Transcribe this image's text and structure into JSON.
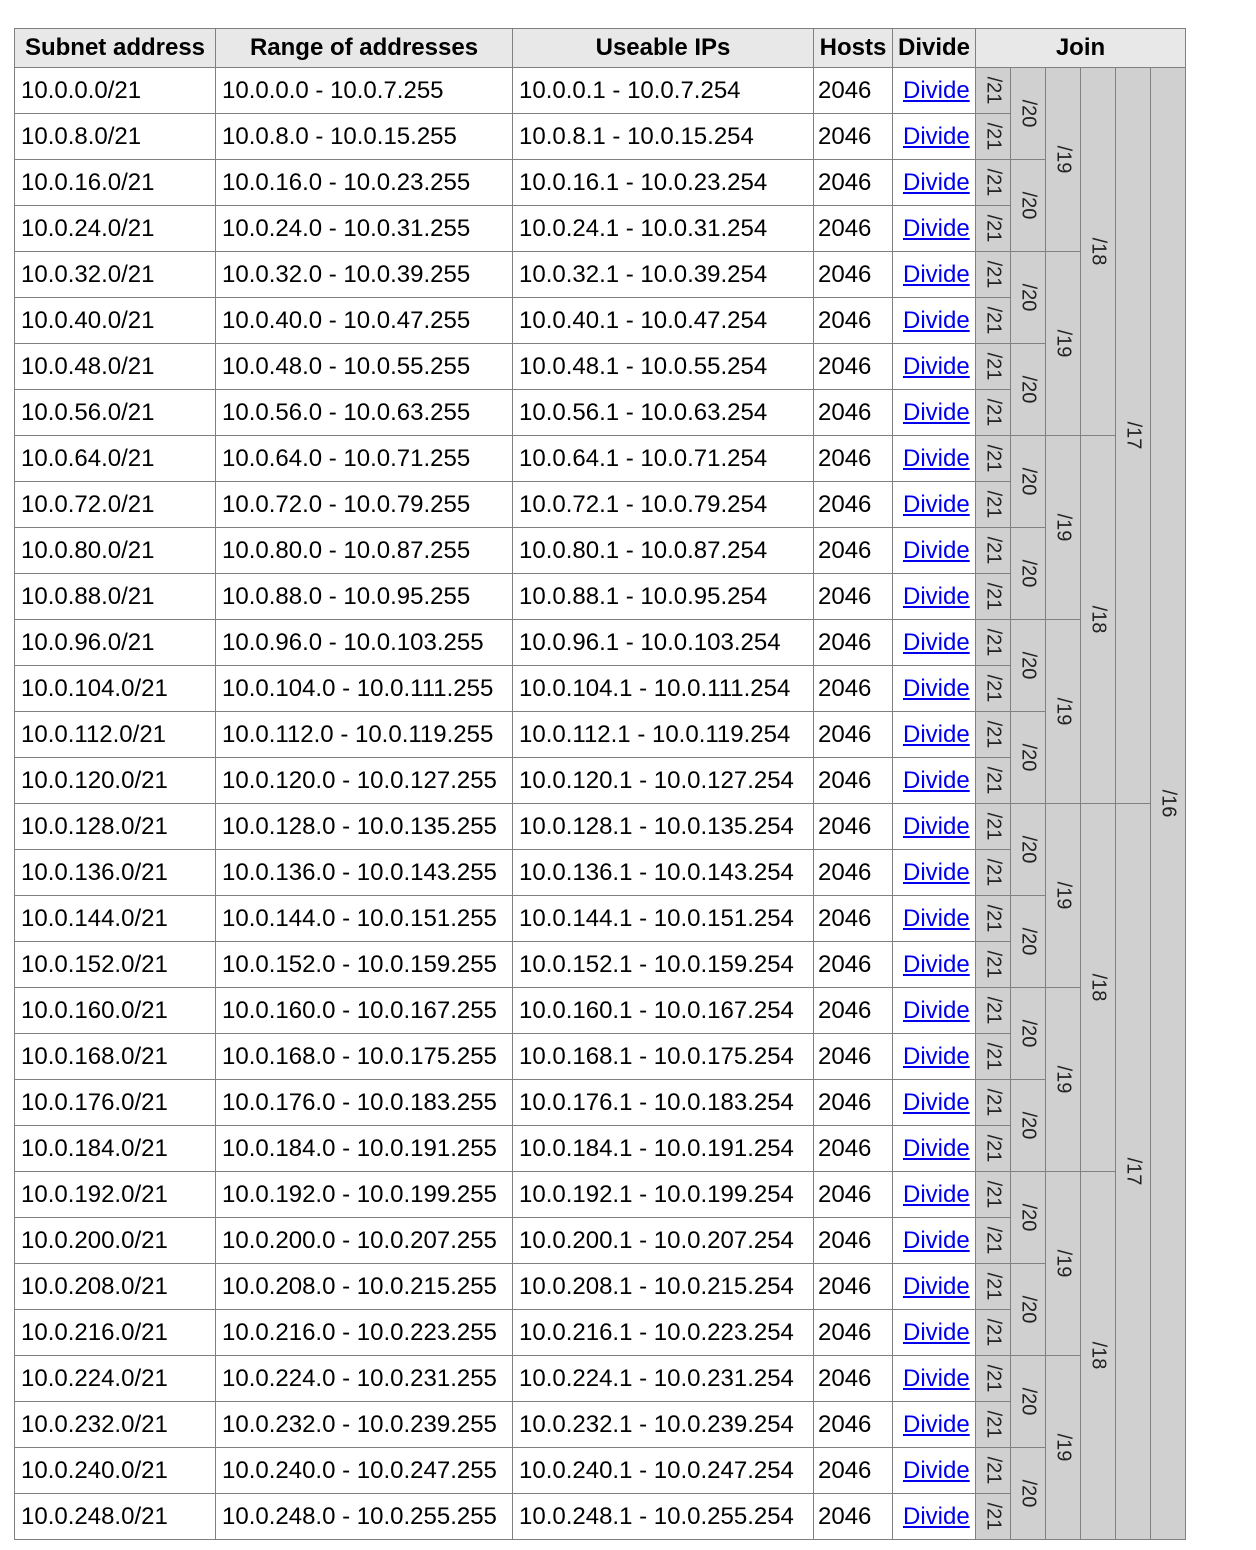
{
  "headers": {
    "subnet": "Subnet address",
    "range": "Range of addresses",
    "useable": "Useable IPs",
    "hosts": "Hosts",
    "divide": "Divide",
    "join": "Join"
  },
  "divide_label": "Divide",
  "rows": [
    {
      "subnet": "10.0.0.0/21",
      "range": "10.0.0.0 - 10.0.7.255",
      "useable": "10.0.0.1 - 10.0.7.254",
      "hosts": "2046"
    },
    {
      "subnet": "10.0.8.0/21",
      "range": "10.0.8.0 - 10.0.15.255",
      "useable": "10.0.8.1 - 10.0.15.254",
      "hosts": "2046"
    },
    {
      "subnet": "10.0.16.0/21",
      "range": "10.0.16.0 - 10.0.23.255",
      "useable": "10.0.16.1 - 10.0.23.254",
      "hosts": "2046"
    },
    {
      "subnet": "10.0.24.0/21",
      "range": "10.0.24.0 - 10.0.31.255",
      "useable": "10.0.24.1 - 10.0.31.254",
      "hosts": "2046"
    },
    {
      "subnet": "10.0.32.0/21",
      "range": "10.0.32.0 - 10.0.39.255",
      "useable": "10.0.32.1 - 10.0.39.254",
      "hosts": "2046"
    },
    {
      "subnet": "10.0.40.0/21",
      "range": "10.0.40.0 - 10.0.47.255",
      "useable": "10.0.40.1 - 10.0.47.254",
      "hosts": "2046"
    },
    {
      "subnet": "10.0.48.0/21",
      "range": "10.0.48.0 - 10.0.55.255",
      "useable": "10.0.48.1 - 10.0.55.254",
      "hosts": "2046"
    },
    {
      "subnet": "10.0.56.0/21",
      "range": "10.0.56.0 - 10.0.63.255",
      "useable": "10.0.56.1 - 10.0.63.254",
      "hosts": "2046"
    },
    {
      "subnet": "10.0.64.0/21",
      "range": "10.0.64.0 - 10.0.71.255",
      "useable": "10.0.64.1 - 10.0.71.254",
      "hosts": "2046"
    },
    {
      "subnet": "10.0.72.0/21",
      "range": "10.0.72.0 - 10.0.79.255",
      "useable": "10.0.72.1 - 10.0.79.254",
      "hosts": "2046"
    },
    {
      "subnet": "10.0.80.0/21",
      "range": "10.0.80.0 - 10.0.87.255",
      "useable": "10.0.80.1 - 10.0.87.254",
      "hosts": "2046"
    },
    {
      "subnet": "10.0.88.0/21",
      "range": "10.0.88.0 - 10.0.95.255",
      "useable": "10.0.88.1 - 10.0.95.254",
      "hosts": "2046"
    },
    {
      "subnet": "10.0.96.0/21",
      "range": "10.0.96.0 - 10.0.103.255",
      "useable": "10.0.96.1 - 10.0.103.254",
      "hosts": "2046"
    },
    {
      "subnet": "10.0.104.0/21",
      "range": "10.0.104.0 - 10.0.111.255",
      "useable": "10.0.104.1 - 10.0.111.254",
      "hosts": "2046"
    },
    {
      "subnet": "10.0.112.0/21",
      "range": "10.0.112.0 - 10.0.119.255",
      "useable": "10.0.112.1 - 10.0.119.254",
      "hosts": "2046"
    },
    {
      "subnet": "10.0.120.0/21",
      "range": "10.0.120.0 - 10.0.127.255",
      "useable": "10.0.120.1 - 10.0.127.254",
      "hosts": "2046"
    },
    {
      "subnet": "10.0.128.0/21",
      "range": "10.0.128.0 - 10.0.135.255",
      "useable": "10.0.128.1 - 10.0.135.254",
      "hosts": "2046"
    },
    {
      "subnet": "10.0.136.0/21",
      "range": "10.0.136.0 - 10.0.143.255",
      "useable": "10.0.136.1 - 10.0.143.254",
      "hosts": "2046"
    },
    {
      "subnet": "10.0.144.0/21",
      "range": "10.0.144.0 - 10.0.151.255",
      "useable": "10.0.144.1 - 10.0.151.254",
      "hosts": "2046"
    },
    {
      "subnet": "10.0.152.0/21",
      "range": "10.0.152.0 - 10.0.159.255",
      "useable": "10.0.152.1 - 10.0.159.254",
      "hosts": "2046"
    },
    {
      "subnet": "10.0.160.0/21",
      "range": "10.0.160.0 - 10.0.167.255",
      "useable": "10.0.160.1 - 10.0.167.254",
      "hosts": "2046"
    },
    {
      "subnet": "10.0.168.0/21",
      "range": "10.0.168.0 - 10.0.175.255",
      "useable": "10.0.168.1 - 10.0.175.254",
      "hosts": "2046"
    },
    {
      "subnet": "10.0.176.0/21",
      "range": "10.0.176.0 - 10.0.183.255",
      "useable": "10.0.176.1 - 10.0.183.254",
      "hosts": "2046"
    },
    {
      "subnet": "10.0.184.0/21",
      "range": "10.0.184.0 - 10.0.191.255",
      "useable": "10.0.184.1 - 10.0.191.254",
      "hosts": "2046"
    },
    {
      "subnet": "10.0.192.0/21",
      "range": "10.0.192.0 - 10.0.199.255",
      "useable": "10.0.192.1 - 10.0.199.254",
      "hosts": "2046"
    },
    {
      "subnet": "10.0.200.0/21",
      "range": "10.0.200.0 - 10.0.207.255",
      "useable": "10.0.200.1 - 10.0.207.254",
      "hosts": "2046"
    },
    {
      "subnet": "10.0.208.0/21",
      "range": "10.0.208.0 - 10.0.215.255",
      "useable": "10.0.208.1 - 10.0.215.254",
      "hosts": "2046"
    },
    {
      "subnet": "10.0.216.0/21",
      "range": "10.0.216.0 - 10.0.223.255",
      "useable": "10.0.216.1 - 10.0.223.254",
      "hosts": "2046"
    },
    {
      "subnet": "10.0.224.0/21",
      "range": "10.0.224.0 - 10.0.231.255",
      "useable": "10.0.224.1 - 10.0.231.254",
      "hosts": "2046"
    },
    {
      "subnet": "10.0.232.0/21",
      "range": "10.0.232.0 - 10.0.239.255",
      "useable": "10.0.232.1 - 10.0.239.254",
      "hosts": "2046"
    },
    {
      "subnet": "10.0.240.0/21",
      "range": "10.0.240.0 - 10.0.247.255",
      "useable": "10.0.240.1 - 10.0.247.254",
      "hosts": "2046"
    },
    {
      "subnet": "10.0.248.0/21",
      "range": "10.0.248.0 - 10.0.255.255",
      "useable": "10.0.248.1 - 10.0.255.254",
      "hosts": "2046"
    }
  ],
  "join_labels": {
    "j21": "/21",
    "j20": "/20",
    "j19": "/19",
    "j18": "/18",
    "j17": "/17",
    "j16": "/16"
  }
}
